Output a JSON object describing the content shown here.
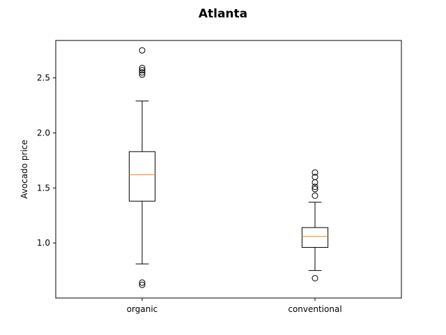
{
  "chart_data": {
    "type": "box",
    "title": "Atlanta",
    "xlabel": "",
    "ylabel": "Avocado price",
    "categories": [
      "organic",
      "conventional"
    ],
    "ylim": [
      0.5,
      2.84
    ],
    "yticks": [
      1.0,
      1.5,
      2.0,
      2.5
    ],
    "ytick_labels": [
      "1.0",
      "1.5",
      "2.0",
      "2.5"
    ],
    "grid": false,
    "boxes": [
      {
        "category": "organic",
        "whisker_low": 0.81,
        "q1": 1.38,
        "median": 1.62,
        "q3": 1.83,
        "whisker_high": 2.29,
        "outliers": [
          0.62,
          0.64,
          2.53,
          2.55,
          2.57,
          2.59,
          2.75
        ]
      },
      {
        "category": "conventional",
        "whisker_low": 0.75,
        "q1": 0.96,
        "median": 1.06,
        "q3": 1.14,
        "whisker_high": 1.37,
        "outliers": [
          0.68,
          1.43,
          1.49,
          1.51,
          1.55,
          1.6,
          1.64
        ]
      }
    ],
    "colors": {
      "box": "#000000",
      "median": "#ff7f0e",
      "outlier": "#000000"
    }
  }
}
